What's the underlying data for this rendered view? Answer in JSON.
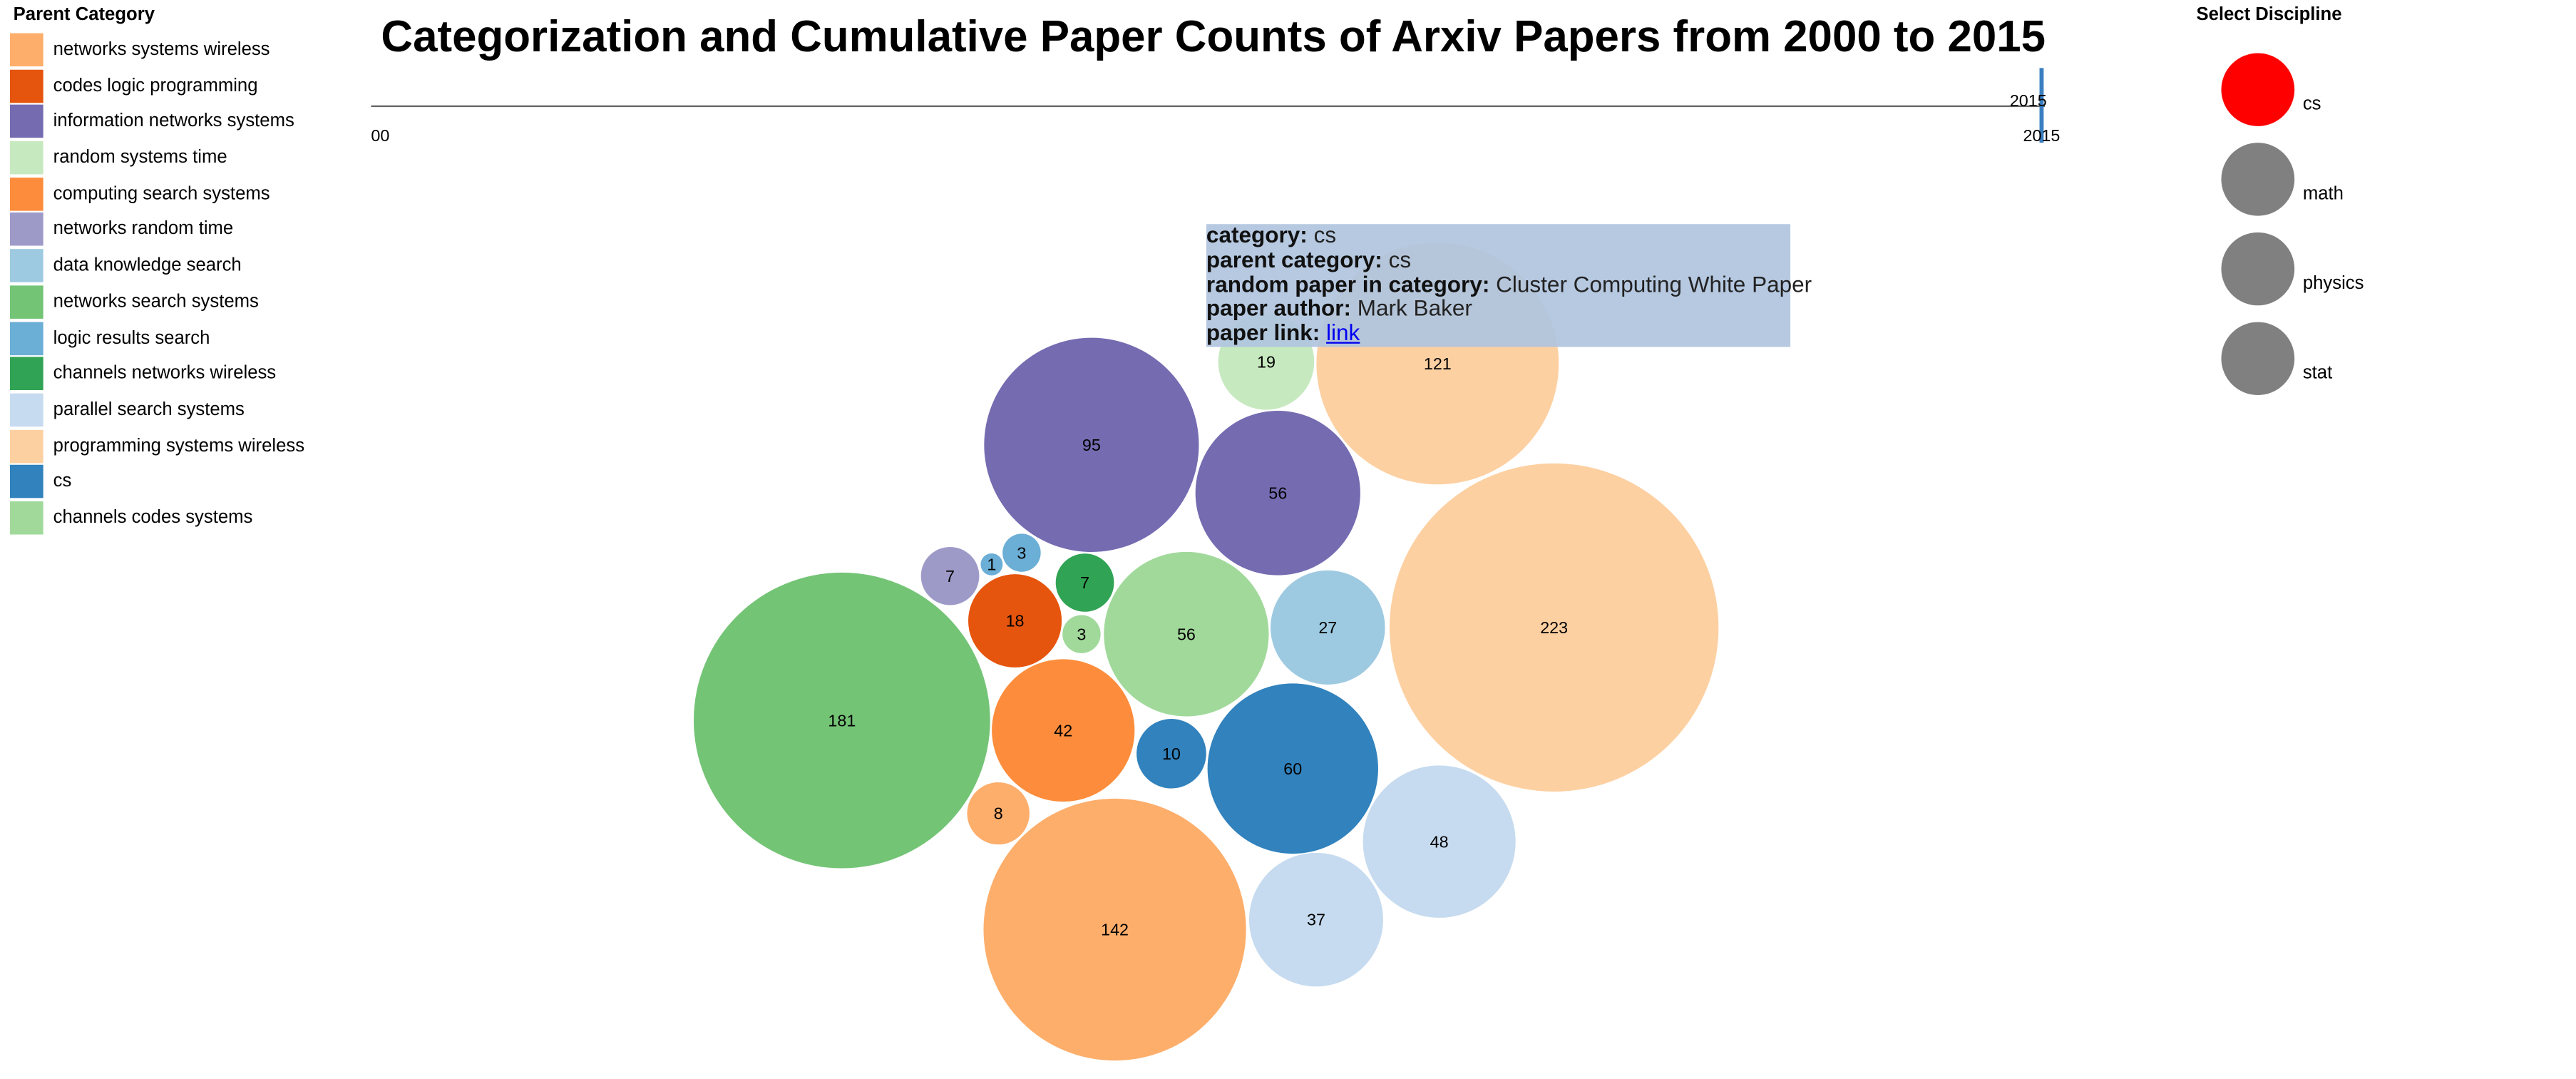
{
  "legend": {
    "title": "Parent Category",
    "items": [
      {
        "label": "networks systems wireless",
        "color": "#fdae6b"
      },
      {
        "label": "codes logic programming",
        "color": "#e6550d"
      },
      {
        "label": "information networks systems",
        "color": "#756bb1"
      },
      {
        "label": "random systems time",
        "color": "#c7e9c0"
      },
      {
        "label": "computing search systems",
        "color": "#fd8d3c"
      },
      {
        "label": "networks random time",
        "color": "#9e9ac8"
      },
      {
        "label": "data knowledge search",
        "color": "#9ecae1"
      },
      {
        "label": "networks search systems",
        "color": "#74c476"
      },
      {
        "label": "logic results search",
        "color": "#6baed6"
      },
      {
        "label": "channels networks wireless",
        "color": "#31a354"
      },
      {
        "label": "parallel search systems",
        "color": "#c6dbef"
      },
      {
        "label": "programming systems wireless",
        "color": "#fdd0a2"
      },
      {
        "label": "cs",
        "color": "#3182bd"
      },
      {
        "label": "channels codes systems",
        "color": "#a1d99b"
      }
    ]
  },
  "chart_data": {
    "type": "bubble",
    "title": "Categorization and Cumulative Paper Counts of Arxiv Papers from 2000 to 2015",
    "slider": {
      "start_label": "00",
      "end_label": "2015",
      "current_label": "2015",
      "min_year": 2000,
      "max_year": 2015,
      "value": 2015
    },
    "values": [
      {
        "value": 181,
        "parent": "networks search systems",
        "color": "#74c476"
      },
      {
        "value": 142,
        "parent": "networks systems wireless",
        "color": "#fdae6b"
      },
      {
        "value": 95,
        "parent": "information networks systems",
        "color": "#756bb1"
      },
      {
        "value": 121,
        "parent": "programming systems wireless",
        "color": "#fdd0a2"
      },
      {
        "value": 19,
        "parent": "random systems time",
        "color": "#c7e9c0"
      },
      {
        "value": 56,
        "parent": "information networks systems",
        "color": "#756bb1"
      },
      {
        "value": 223,
        "parent": "programming systems wireless",
        "color": "#fdd0a2"
      },
      {
        "value": 7,
        "parent": "networks random time",
        "color": "#9e9ac8"
      },
      {
        "value": 1,
        "parent": "logic results search",
        "color": "#6baed6"
      },
      {
        "value": 3,
        "parent": "logic results search",
        "color": "#6baed6"
      },
      {
        "value": 7,
        "parent": "channels networks wireless",
        "color": "#31a354"
      },
      {
        "value": 18,
        "parent": "codes logic programming",
        "color": "#e6550d"
      },
      {
        "value": 3,
        "parent": "channels codes systems",
        "color": "#a1d99b"
      },
      {
        "value": 56,
        "parent": "channels codes systems",
        "color": "#a1d99b"
      },
      {
        "value": 27,
        "parent": "data knowledge search",
        "color": "#9ecae1"
      },
      {
        "value": 42,
        "parent": "computing search systems",
        "color": "#fd8d3c"
      },
      {
        "value": 10,
        "parent": "cs",
        "color": "#3182bd"
      },
      {
        "value": 60,
        "parent": "cs",
        "color": "#3182bd"
      },
      {
        "value": 8,
        "parent": "networks systems wireless",
        "color": "#fdae6b"
      },
      {
        "value": 48,
        "parent": "parallel search systems",
        "color": "#c6dbef"
      },
      {
        "value": 37,
        "parent": "parallel search systems",
        "color": "#c6dbef"
      }
    ]
  },
  "tooltip": {
    "category_key": "category:",
    "category_value": "cs",
    "parent_key": "parent category:",
    "parent_value": "cs",
    "paper_key": "random paper in category:",
    "paper_value": "Cluster Computing White Paper",
    "author_key": "paper author:",
    "author_value": "Mark Baker",
    "link_key": "paper link:",
    "link_text": "link"
  },
  "disciplines": {
    "title": "Select Discipline",
    "items": [
      {
        "label": "cs",
        "color": "#ff0000",
        "selected": true
      },
      {
        "label": "math",
        "color": "#808080",
        "selected": false
      },
      {
        "label": "physics",
        "color": "#808080",
        "selected": false
      },
      {
        "label": "stat",
        "color": "#808080",
        "selected": false
      }
    ]
  }
}
